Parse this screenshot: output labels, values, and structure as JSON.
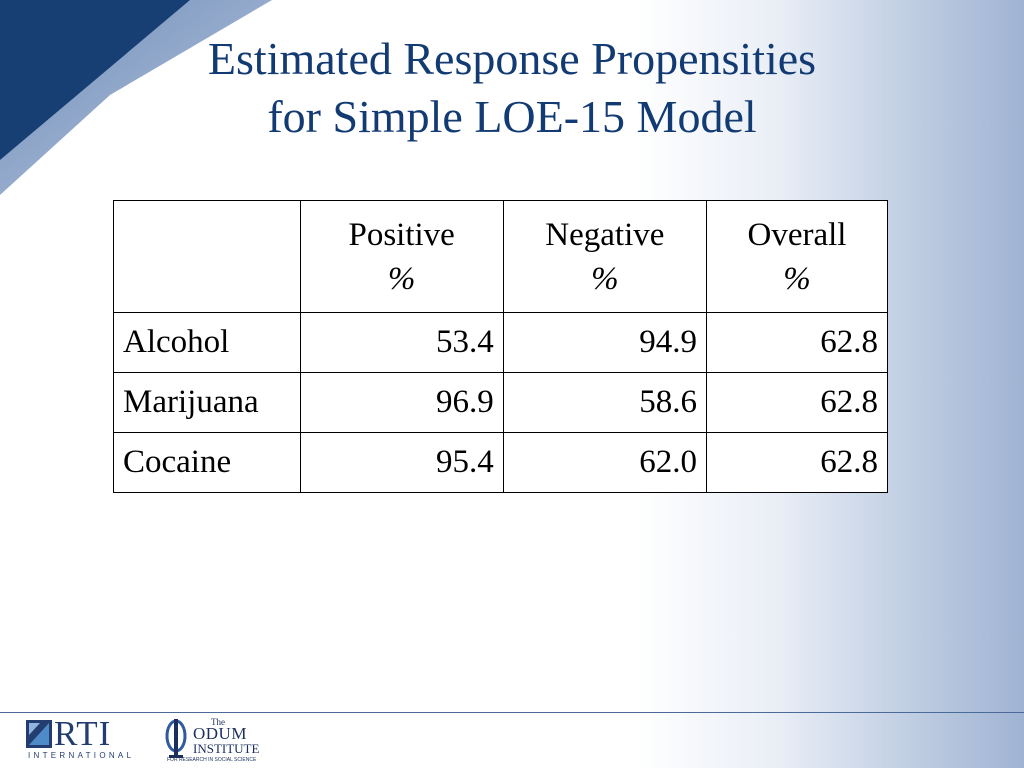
{
  "slide": {
    "title_line1": "Estimated Response Propensities",
    "title_line2": "for Simple LOE-15 Model"
  },
  "table": {
    "columns": [
      {
        "label": "",
        "unit": ""
      },
      {
        "label": "Positive",
        "unit": "%"
      },
      {
        "label": "Negative",
        "unit": "%"
      },
      {
        "label": "Overall",
        "unit": "%"
      }
    ],
    "rows": [
      {
        "label": "Alcohol",
        "positive": "53.4",
        "negative": "94.9",
        "overall": "62.8"
      },
      {
        "label": "Marijuana",
        "positive": "96.9",
        "negative": "58.6",
        "overall": "62.8"
      },
      {
        "label": "Cocaine",
        "positive": "95.4",
        "negative": "62.0",
        "overall": "62.8"
      }
    ]
  },
  "footer": {
    "rti_logo_text": "RTI",
    "rti_logo_subtext": "INTERNATIONAL",
    "odum_the": "The",
    "odum_name": "ODUM",
    "odum_institute": "INSTITUTE",
    "odum_tagline": "FOR RESEARCH IN SOCIAL SCIENCE"
  },
  "colors": {
    "title": "#123a73",
    "corner_dark": "#173f74",
    "corner_light": "#7e98c0",
    "background_gradient_end": "#9fb3d3"
  },
  "icons": {
    "rti_logo_mark": "rti-logo-icon",
    "odum_logo_mark": "odum-logo-icon"
  }
}
